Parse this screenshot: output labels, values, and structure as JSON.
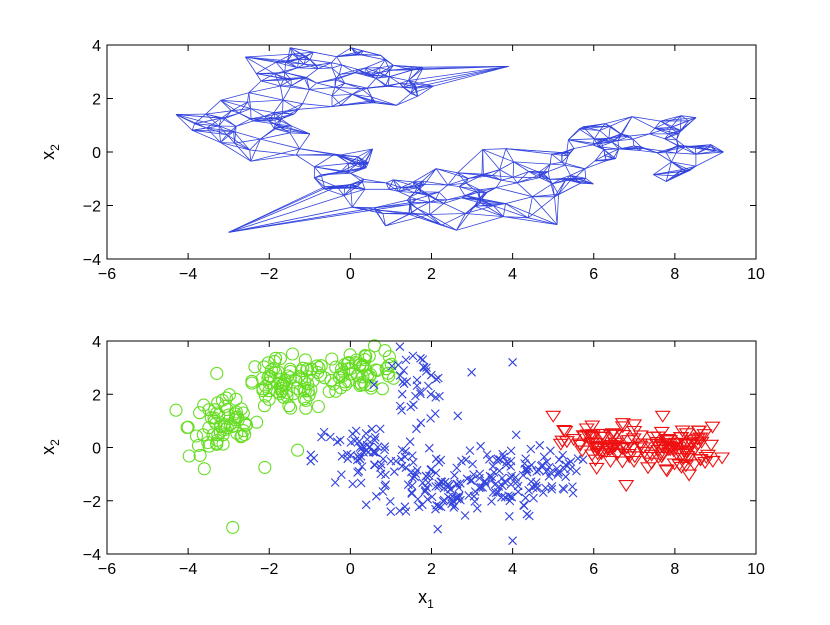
{
  "chart_data": [
    {
      "type": "network",
      "xlim": [
        -6,
        10
      ],
      "ylim": [
        -4,
        4
      ],
      "xticks": [
        -6,
        -4,
        -2,
        0,
        2,
        4,
        6,
        8,
        10
      ],
      "yticks": [
        -4,
        -2,
        0,
        2,
        4
      ],
      "xlabel": "",
      "ylabel": {
        "base": "x",
        "sub": "2"
      },
      "grid": false,
      "edge_color": "#3344dd",
      "node_regions": [
        {
          "cx": -2.2,
          "cy": 1.1,
          "rx": 1.5,
          "ry": 1.0,
          "n": 40
        },
        {
          "cx": -1.0,
          "cy": 3.0,
          "rx": 1.4,
          "ry": 0.8,
          "n": 40
        },
        {
          "cx": 0.8,
          "cy": 2.6,
          "rx": 1.2,
          "ry": 1.1,
          "n": 40
        },
        {
          "cx": -0.2,
          "cy": -0.7,
          "rx": 0.9,
          "ry": 1.0,
          "n": 28
        },
        {
          "cx": 1.6,
          "cy": -1.6,
          "rx": 1.3,
          "ry": 1.0,
          "n": 40
        },
        {
          "cx": 3.3,
          "cy": -1.4,
          "rx": 1.2,
          "ry": 1.2,
          "n": 36
        },
        {
          "cx": 5.3,
          "cy": -0.5,
          "rx": 0.8,
          "ry": 1.0,
          "n": 28
        },
        {
          "cx": 6.5,
          "cy": 0.3,
          "rx": 0.9,
          "ry": 0.8,
          "n": 30
        },
        {
          "cx": 8.0,
          "cy": 0.2,
          "rx": 1.0,
          "ry": 0.9,
          "n": 32
        }
      ],
      "node_outliers": [
        [
          -4.3,
          1.4
        ],
        [
          -3.0,
          -3.0
        ],
        [
          3.9,
          3.2
        ],
        [
          9.2,
          0.0
        ]
      ]
    },
    {
      "type": "scatter",
      "xlim": [
        -6,
        10
      ],
      "ylim": [
        -4,
        4
      ],
      "xticks": [
        -6,
        -4,
        -2,
        0,
        2,
        4,
        6,
        8,
        10
      ],
      "yticks": [
        -4,
        -2,
        0,
        2,
        4
      ],
      "xlabel": {
        "base": "x",
        "sub": "1"
      },
      "ylabel": {
        "base": "x",
        "sub": "2"
      },
      "grid": false,
      "series": [
        {
          "marker": "circle",
          "color": "#66dd22",
          "regions": [
            {
              "cx": -3.1,
              "cy": 0.8,
              "rx": 0.8,
              "ry": 1.1,
              "n": 60
            },
            {
              "cx": -1.6,
              "cy": 2.3,
              "rx": 1.0,
              "ry": 0.9,
              "n": 80
            },
            {
              "cx": 0.3,
              "cy": 2.9,
              "rx": 0.9,
              "ry": 0.7,
              "n": 60
            }
          ],
          "outliers": [
            [
              -2.9,
              -3.0
            ],
            [
              -4.3,
              1.4
            ],
            [
              -1.3,
              -0.1
            ],
            [
              -3.6,
              -0.8
            ]
          ]
        },
        {
          "marker": "x",
          "color": "#3344dd",
          "regions": [
            {
              "cx": 1.6,
              "cy": 2.3,
              "rx": 0.8,
              "ry": 1.2,
              "n": 40
            },
            {
              "cx": 0.4,
              "cy": -0.3,
              "rx": 1.2,
              "ry": 1.1,
              "n": 70
            },
            {
              "cx": 2.3,
              "cy": -1.5,
              "rx": 1.4,
              "ry": 1.0,
              "n": 90
            },
            {
              "cx": 3.7,
              "cy": -1.2,
              "rx": 1.1,
              "ry": 1.3,
              "n": 70
            },
            {
              "cx": 5.0,
              "cy": -0.9,
              "rx": 0.6,
              "ry": 0.8,
              "n": 35
            }
          ],
          "outliers": [
            [
              4.0,
              3.2
            ],
            [
              4.0,
              -3.5
            ],
            [
              -0.9,
              -0.4
            ]
          ]
        },
        {
          "marker": "triangle-down",
          "color": "#ee1111",
          "regions": [
            {
              "cx": 6.3,
              "cy": 0.1,
              "rx": 0.9,
              "ry": 0.7,
              "n": 70
            },
            {
              "cx": 8.1,
              "cy": 0.0,
              "rx": 0.9,
              "ry": 0.7,
              "n": 80
            }
          ],
          "outliers": [
            [
              5.0,
              1.2
            ],
            [
              6.8,
              -1.4
            ],
            [
              7.7,
              1.2
            ]
          ]
        }
      ]
    }
  ]
}
